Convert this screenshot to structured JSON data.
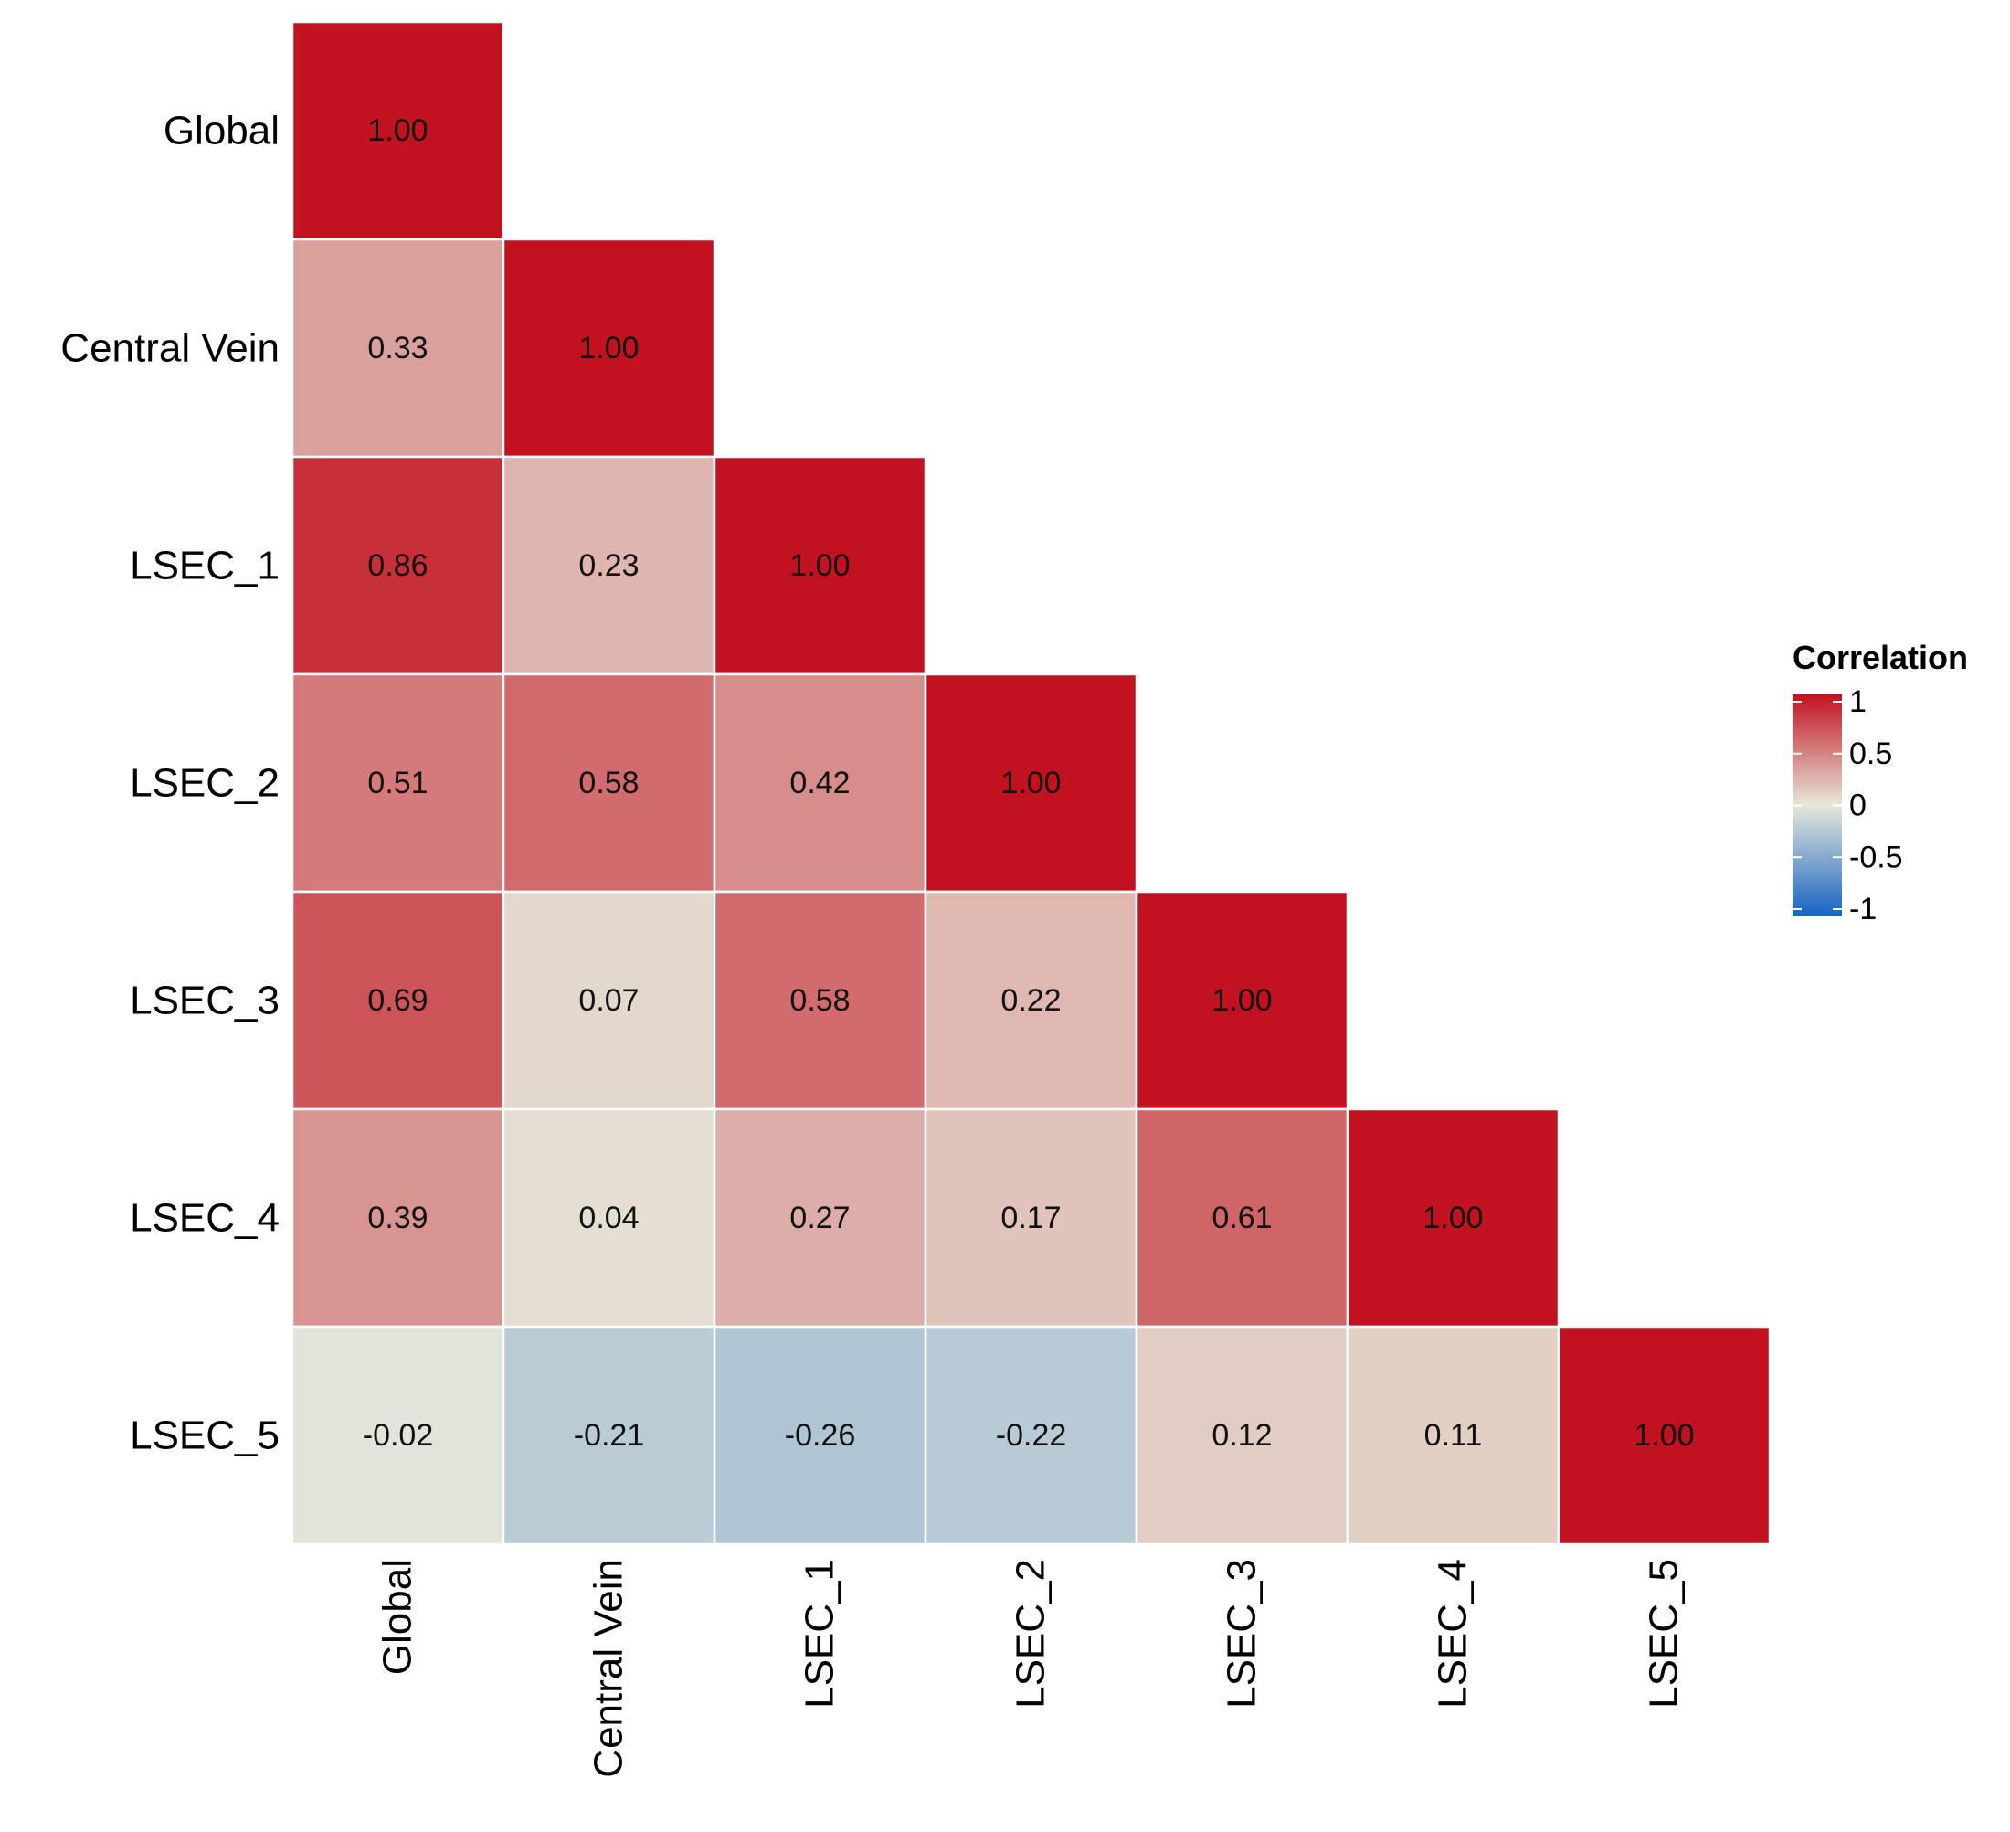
{
  "chart_data": {
    "type": "heatmap",
    "variables": [
      "Global",
      "Central Vein",
      "LSEC_1",
      "LSEC_2",
      "LSEC_3",
      "LSEC_4",
      "LSEC_5"
    ],
    "matrix": [
      [
        1.0,
        null,
        null,
        null,
        null,
        null,
        null
      ],
      [
        0.33,
        1.0,
        null,
        null,
        null,
        null,
        null
      ],
      [
        0.86,
        0.23,
        1.0,
        null,
        null,
        null,
        null
      ],
      [
        0.51,
        0.58,
        0.42,
        1.0,
        null,
        null,
        null
      ],
      [
        0.69,
        0.07,
        0.58,
        0.22,
        1.0,
        null,
        null
      ],
      [
        0.39,
        0.04,
        0.27,
        0.17,
        0.61,
        1.0,
        null
      ],
      [
        -0.02,
        -0.21,
        -0.26,
        -0.22,
        0.12,
        0.11,
        1.0
      ]
    ],
    "cell_labels": [
      [
        "1.00",
        null,
        null,
        null,
        null,
        null,
        null
      ],
      [
        "0.33",
        "1.00",
        null,
        null,
        null,
        null,
        null
      ],
      [
        "0.86",
        "0.23",
        "1.00",
        null,
        null,
        null,
        null
      ],
      [
        "0.51",
        "0.58",
        "0.42",
        "1.00",
        null,
        null,
        null
      ],
      [
        "0.69",
        "0.07",
        "0.58",
        "0.22",
        "1.00",
        null,
        null
      ],
      [
        "0.39",
        "0.04",
        "0.27",
        "0.17",
        "0.61",
        "1.00",
        null
      ],
      [
        "-0.02",
        "-0.21",
        "-0.26",
        "-0.22",
        "0.12",
        "0.11",
        "1.00"
      ]
    ],
    "legend": {
      "title": "Correlation",
      "ticks": [
        1,
        0.5,
        0,
        -0.5,
        -1
      ],
      "tick_labels": [
        "1",
        "0.5",
        "0",
        "-0.5",
        "-1"
      ],
      "range": [
        -1,
        1
      ],
      "colors": {
        "low": "#1763C4",
        "mid": "#E6E7DA",
        "high": "#C2121F"
      },
      "placement": "right"
    },
    "cell_border_color": "#ffffff",
    "lower_triangle_only": true
  }
}
